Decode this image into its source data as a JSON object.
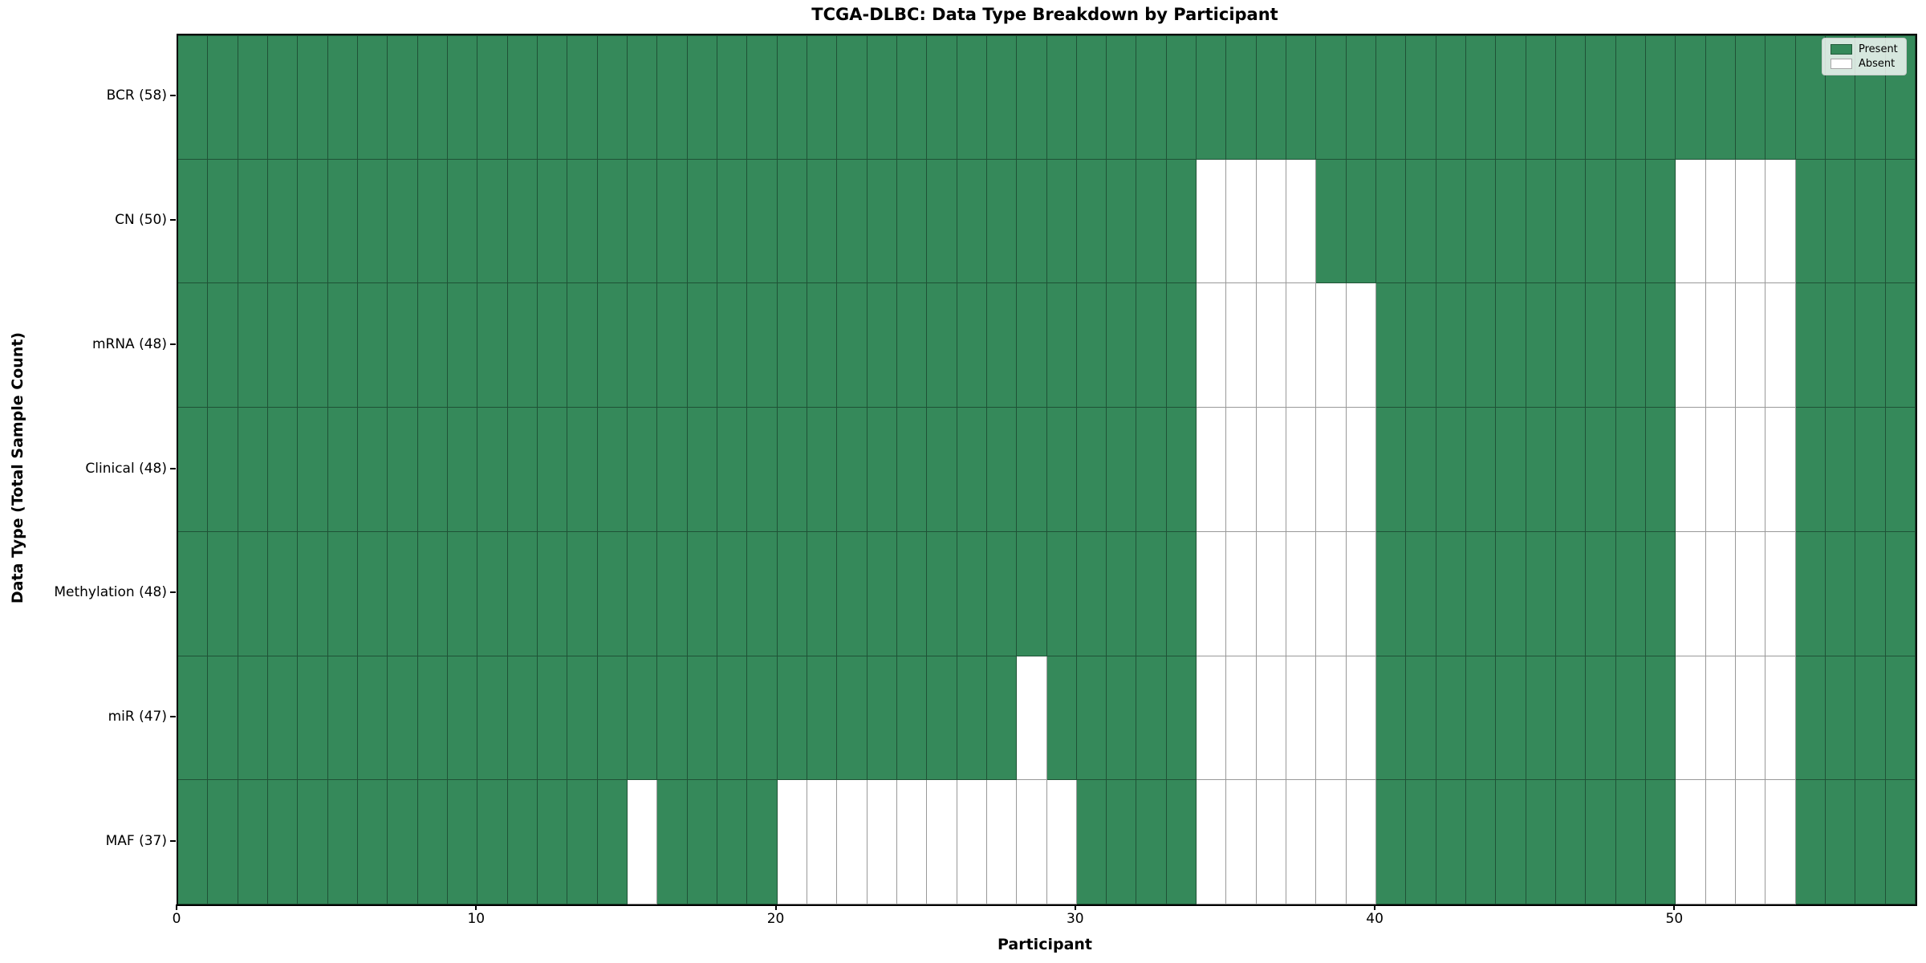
{
  "title": "TCGA-DLBC: Data Type Breakdown by Participant",
  "axes": {
    "xlabel": "Participant",
    "ylabel": "Data Type (Total Sample Count)"
  },
  "legend": {
    "present_label": "Present",
    "absent_label": "Absent"
  },
  "colors": {
    "present": "#35895a",
    "absent": "#ffffff",
    "grid_line": "rgba(0,0,0,0.40)",
    "legend_background": "rgba(255,255,255,0.8)",
    "legend_border": "#cccccc"
  },
  "chart_data": {
    "type": "heatmap",
    "title": "TCGA-DLBC: Data Type Breakdown by Participant",
    "xlabel": "Participant",
    "ylabel": "Data Type (Total Sample Count)",
    "x_range": [
      0,
      58
    ],
    "x_ticks": [
      0,
      10,
      20,
      30,
      40,
      50
    ],
    "n_participants": 58,
    "grid": true,
    "legend_position": "upper right",
    "cell_values": {
      "present": 1,
      "absent": 0
    },
    "rows": [
      {
        "label": "BCR (58)",
        "data_type": "BCR",
        "present_count": 58,
        "absent_participants": []
      },
      {
        "label": "CN (50)",
        "data_type": "CN",
        "present_count": 50,
        "absent_participants": [
          34,
          35,
          36,
          37,
          50,
          51,
          52,
          53
        ]
      },
      {
        "label": "mRNA (48)",
        "data_type": "mRNA",
        "present_count": 48,
        "absent_participants": [
          34,
          35,
          36,
          37,
          38,
          39,
          50,
          51,
          52,
          53
        ]
      },
      {
        "label": "Clinical (48)",
        "data_type": "Clinical",
        "present_count": 48,
        "absent_participants": [
          34,
          35,
          36,
          37,
          38,
          39,
          50,
          51,
          52,
          53
        ]
      },
      {
        "label": "Methylation (48)",
        "data_type": "Methylation",
        "present_count": 48,
        "absent_participants": [
          34,
          35,
          36,
          37,
          38,
          39,
          50,
          51,
          52,
          53
        ]
      },
      {
        "label": "miR (47)",
        "data_type": "miR",
        "present_count": 47,
        "absent_participants": [
          28,
          34,
          35,
          36,
          37,
          38,
          39,
          50,
          51,
          52,
          53
        ]
      },
      {
        "label": "MAF (37)",
        "data_type": "MAF",
        "present_count": 37,
        "absent_participants": [
          15,
          20,
          21,
          22,
          23,
          24,
          25,
          26,
          27,
          28,
          29,
          34,
          35,
          36,
          37,
          38,
          39,
          50,
          51,
          52,
          53
        ]
      }
    ]
  }
}
